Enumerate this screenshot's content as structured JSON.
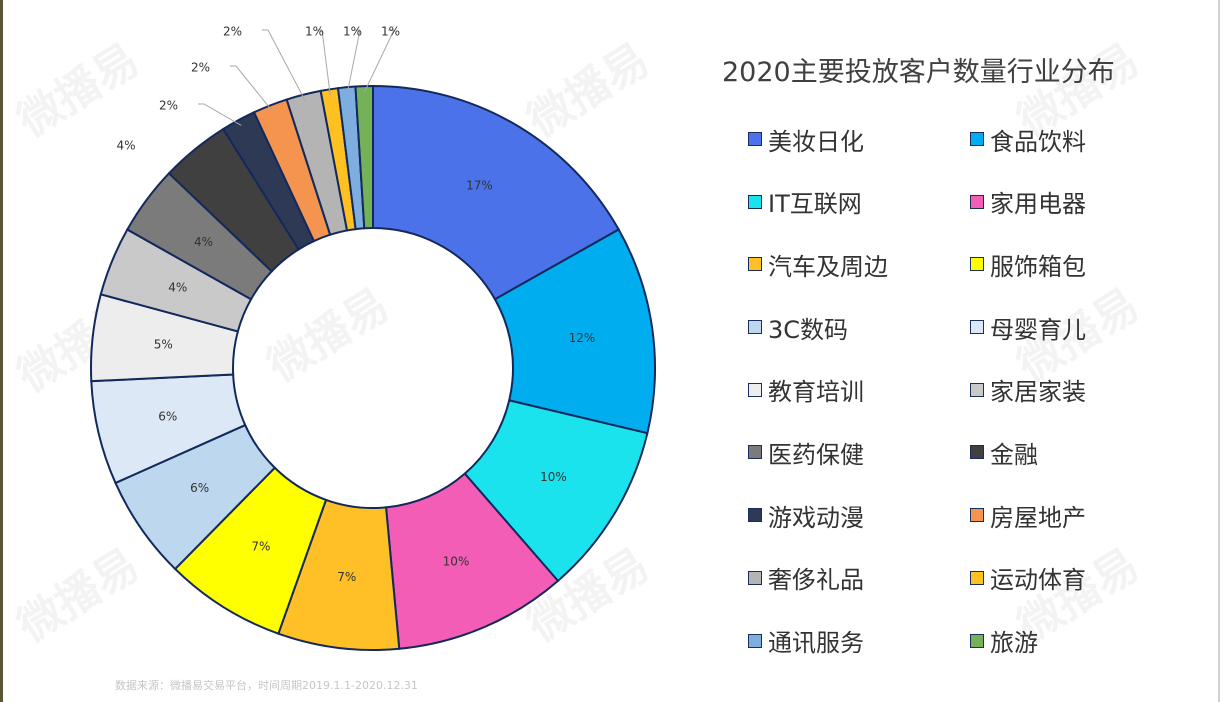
{
  "chart_data": {
    "type": "pie",
    "title": "2020主要投放客户数量行业分布",
    "legend_position": "right",
    "slice_label_color": "#333333",
    "slices": [
      {
        "name": "美妆日化",
        "value": 17,
        "label": "17%",
        "color": "#4B72E8"
      },
      {
        "name": "食品饮料",
        "value": 12,
        "label": "12%",
        "color": "#00AEEF"
      },
      {
        "name": "IT互联网",
        "value": 10,
        "label": "10%",
        "color": "#1BE3EE"
      },
      {
        "name": "家用电器",
        "value": 10,
        "label": "10%",
        "color": "#F45DB6"
      },
      {
        "name": "汽车及周边",
        "value": 7,
        "label": "7%",
        "color": "#FFBF26"
      },
      {
        "name": "服饰箱包",
        "value": 7,
        "label": "7%",
        "color": "#FFFF00"
      },
      {
        "name": "3C数码",
        "value": 6,
        "label": "6%",
        "color": "#BDD7EE"
      },
      {
        "name": "母婴育儿",
        "value": 6,
        "label": "6%",
        "color": "#DDE8F6"
      },
      {
        "name": "教育培训",
        "value": 5,
        "label": "5%",
        "color": "#EDEDED"
      },
      {
        "name": "家居家装",
        "value": 4,
        "label": "4%",
        "color": "#C9C9C9"
      },
      {
        "name": "医药保健",
        "value": 4,
        "label": "4%",
        "color": "#7B7B7B"
      },
      {
        "name": "金融",
        "value": 4,
        "label": "4%",
        "color": "#404040"
      },
      {
        "name": "游戏动漫",
        "value": 2,
        "label": "2%",
        "color": "#2E3A55"
      },
      {
        "name": "房屋地产",
        "value": 2,
        "label": "2%",
        "color": "#F4944F"
      },
      {
        "name": "奢侈礼品",
        "value": 2,
        "label": "2%",
        "color": "#B4B4B4"
      },
      {
        "name": "运动体育",
        "value": 1,
        "label": "1%",
        "color": "#FFC021"
      },
      {
        "name": "通讯服务",
        "value": 1,
        "label": "1%",
        "color": "#7EADE0"
      },
      {
        "name": "旅游",
        "value": 1,
        "label": "1%",
        "color": "#74B158"
      }
    ]
  },
  "source_note": "数据来源：微播易交易平台，时间周期2019.1.1-2020.12.31",
  "watermark_text": "微播易"
}
